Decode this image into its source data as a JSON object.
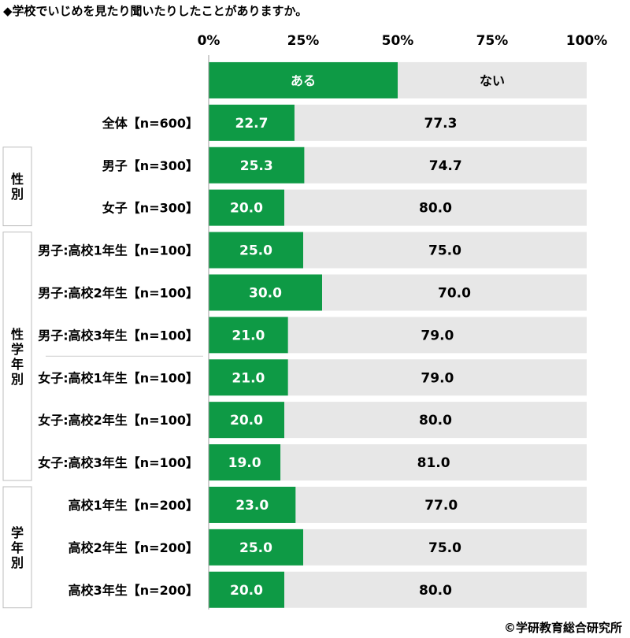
{
  "title": "◆学校でいじめを見たり聞いたりしたことがありますか。",
  "copyright": "©学研教育総合研究所",
  "colors": {
    "yes": "#0e9a45",
    "no": "#e7e7e7",
    "group_border": "#bdbdbd",
    "axis": "#9e9e9e"
  },
  "chart_data": {
    "type": "bar",
    "stacked": true,
    "orientation": "horizontal",
    "xlim": [
      0,
      100
    ],
    "x_ticks": [
      "0%",
      "25%",
      "50%",
      "75%",
      "100%"
    ],
    "legend": {
      "placement": "top",
      "items": [
        "ある",
        "ない"
      ]
    },
    "categories": [
      "全体【n=600】",
      "男子【n=300】",
      "女子【n=300】",
      "男子:高校1年生【n=100】",
      "男子:高校2年生【n=100】",
      "男子:高校3年生【n=100】",
      "女子:高校1年生【n=100】",
      "女子:高校2年生【n=100】",
      "女子:高校3年生【n=100】",
      "高校1年生【n=200】",
      "高校2年生【n=200】",
      "高校3年生【n=200】"
    ],
    "series": [
      {
        "name": "ある",
        "values": [
          "22.7",
          "25.3",
          "20.0",
          "25.0",
          "30.0",
          "21.0",
          "21.0",
          "20.0",
          "19.0",
          "23.0",
          "25.0",
          "20.0"
        ]
      },
      {
        "name": "ない",
        "values": [
          "77.3",
          "74.7",
          "80.0",
          "75.0",
          "70.0",
          "79.0",
          "79.0",
          "80.0",
          "81.0",
          "77.0",
          "75.0",
          "80.0"
        ]
      }
    ],
    "groups": [
      {
        "label": "性別",
        "rows": [
          1,
          2
        ]
      },
      {
        "label": "性学年別",
        "rows": [
          3,
          4,
          5,
          6,
          7,
          8
        ]
      },
      {
        "label": "学年別",
        "rows": [
          9,
          10,
          11
        ]
      }
    ],
    "subgroup_dividers_after_rows": [
      5
    ]
  }
}
